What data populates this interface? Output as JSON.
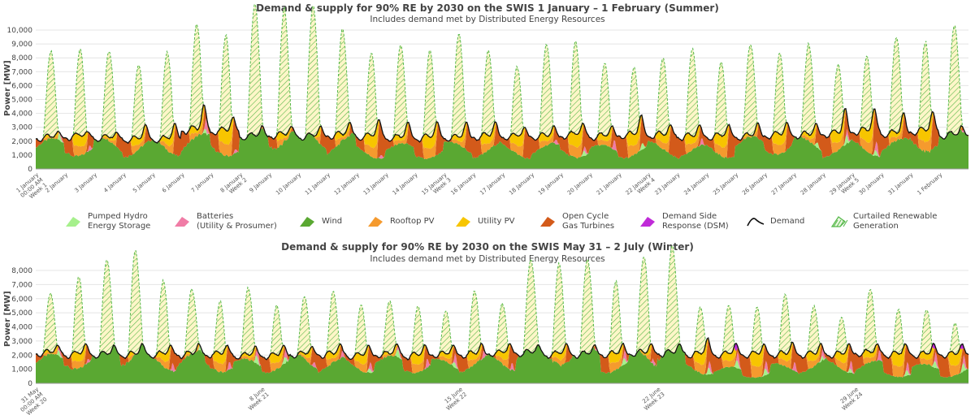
{
  "colors": {
    "hydro": "#a6f08c",
    "battery": "#f07ca6",
    "wind": "#5aa832",
    "rooftop": "#f59a2e",
    "utility": "#f7c500",
    "ocgt": "#d35a1a",
    "dsm": "#c02ad8",
    "demand": "#111111",
    "curtailed": "#55b84a",
    "curtailed_bg": "#fff6c8"
  },
  "legend": [
    {
      "key": "hydro",
      "label": "Pumped Hydro\nEnergy Storage",
      "icon": "pumped-hydro-icon"
    },
    {
      "key": "battery",
      "label": "Batteries\n(Utility & Prosumer)",
      "icon": "battery-icon"
    },
    {
      "key": "wind",
      "label": "Wind",
      "icon": "wind-icon"
    },
    {
      "key": "rooftop",
      "label": "Rooftop PV",
      "icon": "rooftop-pv-icon"
    },
    {
      "key": "utility",
      "label": "Utility PV",
      "icon": "utility-pv-icon"
    },
    {
      "key": "ocgt",
      "label": "Open Cycle\nGas Turbines",
      "icon": "ocgt-icon"
    },
    {
      "key": "dsm",
      "label": "Demand Side\nResponse (DSM)",
      "icon": "dsm-icon"
    },
    {
      "key": "demand",
      "label": "Demand",
      "icon": "demand-line-icon"
    },
    {
      "key": "curtailed",
      "label": "Curtailed Renewable\nGeneration",
      "icon": "curtailed-icon"
    }
  ],
  "chart_data": [
    {
      "type": "area",
      "title": "Demand & supply for 90% RE by 2030 on the SWIS 1 January – 1 February (Summer)",
      "subtitle": "Includes demand met by Distributed Energy Resources",
      "ylabel": "Power [MW]",
      "ylim": [
        0,
        10000
      ],
      "yticks": [
        "0",
        "1,000",
        "2,000",
        "3,000",
        "4,000",
        "5,000",
        "6,000",
        "7,000",
        "8,000",
        "9,000",
        "10,000"
      ],
      "xtick_labels": [
        [
          "1 January",
          "00:00 AM",
          "Week 1"
        ],
        [
          "2 January"
        ],
        [
          "3 January"
        ],
        [
          "4 January"
        ],
        [
          "5 January"
        ],
        [
          "6 January"
        ],
        [
          "7 January"
        ],
        [
          "8 January",
          "Week 2"
        ],
        [
          "9 January"
        ],
        [
          "10 January"
        ],
        [
          "11 January"
        ],
        [
          "12 January"
        ],
        [
          "13 January"
        ],
        [
          "14 January"
        ],
        [
          "15 January",
          "Week 3"
        ],
        [
          "16 January"
        ],
        [
          "17 January"
        ],
        [
          "18 January"
        ],
        [
          "19 January"
        ],
        [
          "20 January"
        ],
        [
          "21 January"
        ],
        [
          "22 January",
          "Week 4"
        ],
        [
          "23 January"
        ],
        [
          "24 January"
        ],
        [
          "25 January"
        ],
        [
          "26 January"
        ],
        [
          "27 January"
        ],
        [
          "28 January"
        ],
        [
          "29 January",
          "Week 5"
        ],
        [
          "30 January"
        ],
        [
          "31 January"
        ],
        [
          "1 February"
        ]
      ],
      "grid": true,
      "legend_position": "bottom",
      "series_order": [
        "hydro",
        "battery",
        "wind",
        "ocgt",
        "rooftop",
        "utility",
        "dsm",
        "curtailed",
        "demand"
      ],
      "days": 32,
      "daily": {
        "demand_base": [
          2400,
          2500,
          2400,
          2300,
          2300,
          3000,
          2900,
          2500,
          2600,
          2500,
          2600,
          2500,
          2400,
          2400,
          2400,
          2500,
          2500,
          2500,
          2600,
          2500,
          2600,
          2600,
          2500,
          2500,
          2500,
          2600,
          2600,
          2700,
          2900,
          2700,
          2900,
          2600
        ],
        "demand_peak": [
          2900,
          2900,
          2850,
          3400,
          3500,
          4900,
          4000,
          3300,
          3300,
          3300,
          3600,
          3800,
          3600,
          3600,
          3600,
          3600,
          3200,
          3300,
          3500,
          3300,
          4100,
          3400,
          3400,
          3400,
          3500,
          3600,
          3500,
          4600,
          4600,
          4300,
          4400,
          3300
        ],
        "wind": [
          1900,
          2000,
          2000,
          1900,
          2000,
          2200,
          2100,
          3000,
          3300,
          2800,
          2200,
          1700,
          1600,
          1600,
          1700,
          1800,
          1600,
          1600,
          1800,
          1500,
          1700,
          1700,
          1500,
          1800,
          2000,
          2300,
          2000,
          1800,
          1900,
          1900,
          2800,
          2900
        ],
        "solar_total": [
          6300,
          7700,
          6500,
          6100,
          7100,
          8100,
          8700,
          9500,
          9600,
          9400,
          8000,
          7500,
          7100,
          7800,
          8000,
          7200,
          6300,
          7300,
          8400,
          5900,
          6300,
          6600,
          7300,
          6800,
          6700,
          7300,
          7000,
          6200,
          6900,
          7500,
          7900,
          7900
        ],
        "ocgt": [
          0,
          0,
          0,
          0,
          0,
          1200,
          500,
          0,
          0,
          0,
          0,
          0,
          0,
          0,
          0,
          0,
          0,
          0,
          0,
          400,
          900,
          0,
          0,
          0,
          0,
          0,
          0,
          500,
          300,
          300,
          0,
          0
        ],
        "hydro": [
          500,
          0,
          0,
          0,
          0,
          300,
          0,
          0,
          0,
          0,
          0,
          0,
          0,
          0,
          0,
          0,
          0,
          0,
          400,
          0,
          500,
          0,
          0,
          0,
          0,
          0,
          400,
          600,
          400,
          0,
          0,
          0
        ],
        "battery": [
          600,
          400,
          0,
          0,
          0,
          900,
          300,
          0,
          0,
          0,
          0,
          300,
          0,
          0,
          0,
          0,
          0,
          400,
          400,
          800,
          0,
          0,
          500,
          0,
          0,
          0,
          0,
          500,
          800,
          0,
          0,
          500
        ]
      }
    },
    {
      "type": "area",
      "title": "Demand & supply for 90% RE by 2030 on the SWIS May 31 – 2 July (Winter)",
      "subtitle": "Includes demand met by Distributed Energy Resources",
      "ylabel": "Power [MW]",
      "ylim": [
        0,
        8000
      ],
      "yticks": [
        "0",
        "1,000",
        "2,000",
        "3,000",
        "4,000",
        "5,000",
        "6,000",
        "7,000",
        "8,000"
      ],
      "xtick_labels": [
        [
          "31 May",
          "00:00 AM",
          "Week 20"
        ],
        [
          "8 June",
          "Week 21"
        ],
        [
          "15 June",
          "Week 22"
        ],
        [
          "22 June",
          "Week 23"
        ],
        [
          "29 June",
          "Week 24"
        ]
      ],
      "xtick_day_index": [
        0,
        8,
        15,
        22,
        29
      ],
      "grid": true,
      "series_order": [
        "hydro",
        "battery",
        "wind",
        "ocgt",
        "rooftop",
        "utility",
        "dsm",
        "curtailed",
        "demand"
      ],
      "days": 33,
      "daily": {
        "demand_base": [
          2300,
          2200,
          2200,
          2200,
          2200,
          2200,
          2200,
          2100,
          2100,
          2200,
          2200,
          2100,
          2200,
          2100,
          2200,
          2200,
          2300,
          2300,
          2200,
          2200,
          2200,
          2300,
          2300,
          2200,
          2200,
          2200,
          2200,
          2200,
          2200,
          2300,
          2200,
          2200,
          2200
        ],
        "demand_peak": [
          2900,
          3000,
          2900,
          3000,
          2900,
          3000,
          2900,
          2800,
          2900,
          2800,
          3000,
          2900,
          3000,
          2900,
          2900,
          3000,
          3000,
          2900,
          3000,
          2900,
          3000,
          3000,
          3000,
          3400,
          3000,
          3000,
          3100,
          3000,
          3000,
          3000,
          3000,
          3000,
          3000
        ],
        "wind": [
          1800,
          2200,
          3600,
          2900,
          1800,
          2000,
          1800,
          1500,
          1700,
          2000,
          1600,
          1700,
          1700,
          1600,
          1500,
          1800,
          2000,
          2600,
          2900,
          2500,
          1600,
          2400,
          3300,
          1400,
          1000,
          900,
          1200,
          1600,
          1500,
          1400,
          1000,
          1200,
          1000
        ],
        "solar_total": [
          4300,
          6500,
          6700,
          7400,
          6100,
          4600,
          5000,
          5100,
          4500,
          4400,
          5000,
          4700,
          3900,
          4700,
          3600,
          5200,
          4300,
          6600,
          7200,
          6700,
          6300,
          7000,
          7600,
          4700,
          4400,
          5000,
          5100,
          4300,
          3700,
          5200,
          4800,
          3900,
          3700
        ],
        "ocgt": [
          500,
          400,
          0,
          0,
          600,
          700,
          800,
          1000,
          900,
          800,
          900,
          900,
          1000,
          1000,
          1200,
          900,
          800,
          400,
          0,
          200,
          900,
          300,
          0,
          1600,
          1900,
          2000,
          1800,
          1300,
          1500,
          1600,
          1800,
          1700,
          1900
        ],
        "hydro": [
          400,
          0,
          0,
          0,
          0,
          300,
          0,
          600,
          500,
          0,
          0,
          300,
          600,
          0,
          400,
          0,
          0,
          0,
          0,
          0,
          500,
          0,
          0,
          500,
          600,
          500,
          0,
          300,
          300,
          0,
          400,
          500,
          600
        ],
        "battery": [
          500,
          300,
          0,
          0,
          600,
          500,
          600,
          800,
          700,
          400,
          500,
          600,
          700,
          700,
          800,
          600,
          500,
          400,
          0,
          300,
          700,
          400,
          0,
          600,
          800,
          700,
          700,
          600,
          700,
          800,
          700,
          800,
          700
        ],
        "dsm": [
          0,
          0,
          0,
          0,
          0,
          0,
          0,
          0,
          0,
          0,
          0,
          0,
          0,
          0,
          0,
          0,
          0,
          0,
          0,
          0,
          0,
          0,
          0,
          0,
          600,
          0,
          0,
          0,
          0,
          0,
          0,
          400,
          400
        ]
      }
    }
  ]
}
